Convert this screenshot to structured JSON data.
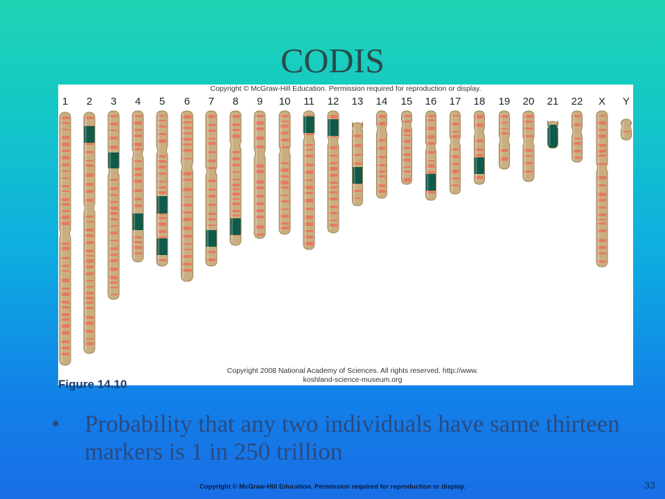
{
  "slide": {
    "title": "CODIS",
    "figure": {
      "top_credit": "Copyright © McGraw-Hill Education. Permission required for reproduction or display.",
      "bottom_credit_line1": "Copyright 2008 National Academy of Sciences. All rights reserved. http://www.",
      "bottom_credit_line2": "koshland-science-museum.org",
      "label": "Figure 14.10",
      "chromosome_labels": [
        "1",
        "2",
        "3",
        "4",
        "5",
        "6",
        "7",
        "8",
        "9",
        "10",
        "11",
        "12",
        "13",
        "14",
        "15",
        "16",
        "17",
        "18",
        "19",
        "20",
        "21",
        "22",
        "X",
        "Y"
      ],
      "colors": {
        "body": "#c9ae82",
        "edge": "#9e8357",
        "band": "#e8745a",
        "marker": "#0f5a4a"
      }
    },
    "bullet": "Probability that any two individuals have same thirteen markers is 1 in 250 trillion",
    "footer_copyright": "Copyright © McGraw-Hill Education. Permission required for reproduction or display.",
    "page_number": "33"
  }
}
